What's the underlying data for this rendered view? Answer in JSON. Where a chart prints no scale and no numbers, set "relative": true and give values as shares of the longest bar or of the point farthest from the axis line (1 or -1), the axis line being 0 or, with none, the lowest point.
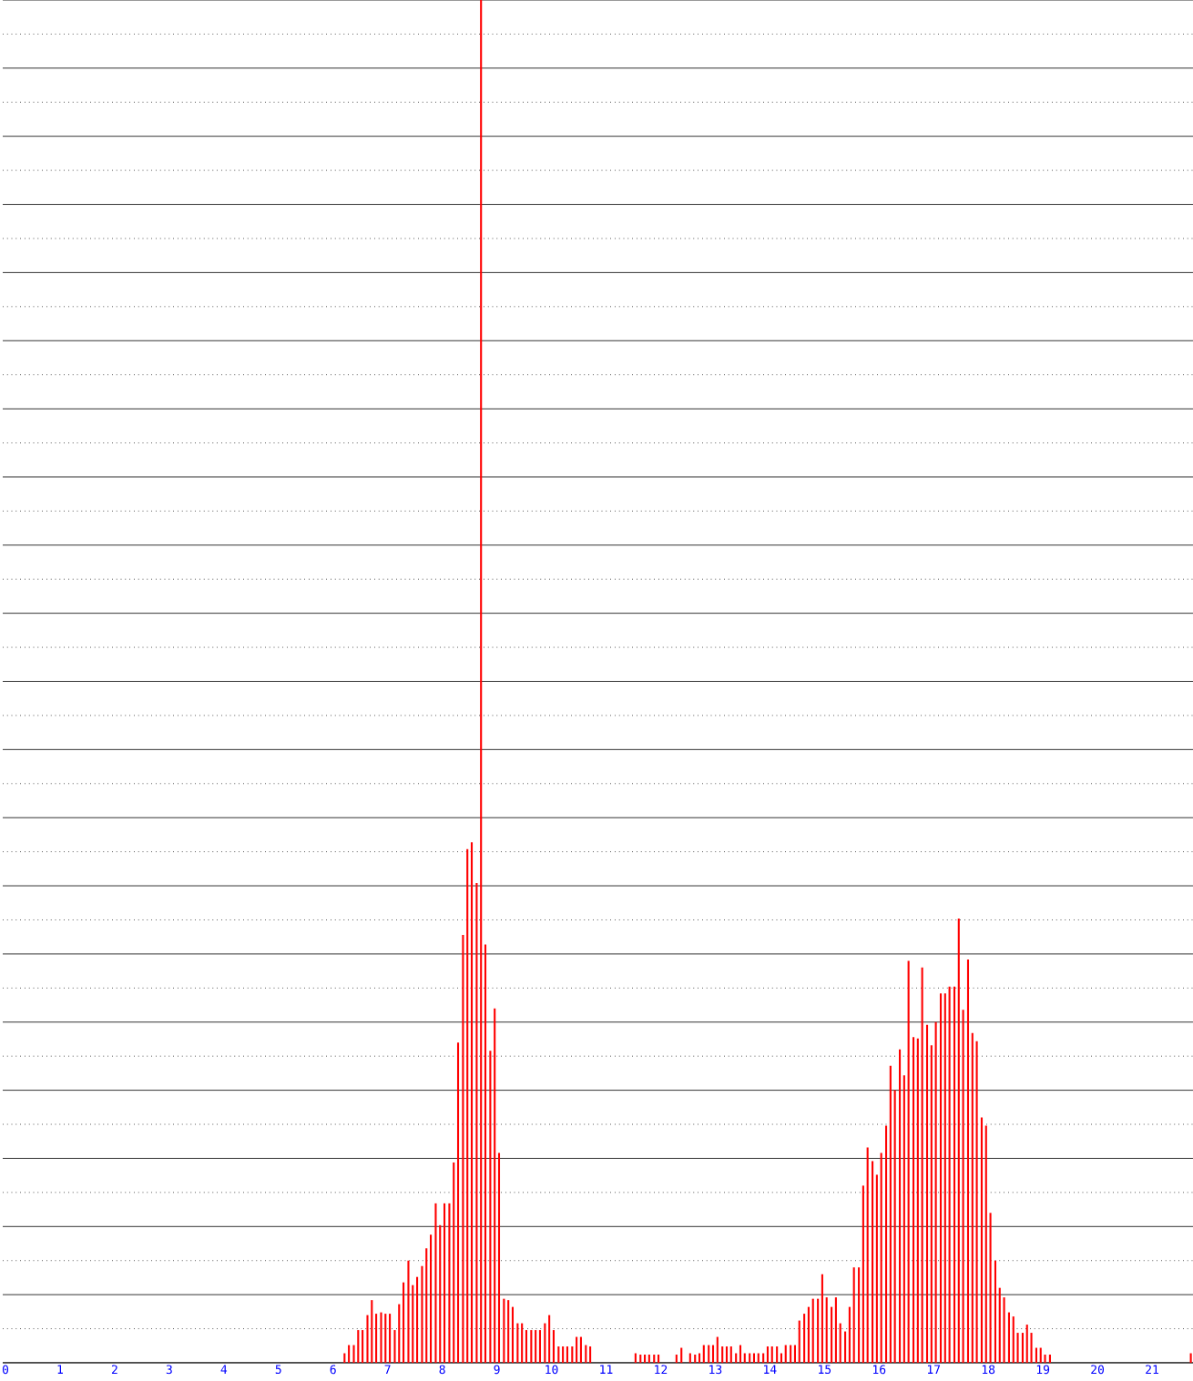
{
  "chart_data": {
    "type": "bar",
    "relative": true,
    "grid": "y",
    "xlim": [
      -0.05,
      21.75
    ],
    "xticks": [
      0,
      1,
      2,
      3,
      4,
      5,
      6,
      7,
      8,
      9,
      10,
      11,
      12,
      13,
      14,
      15,
      16,
      17,
      18,
      19,
      20,
      21
    ],
    "series": [
      {
        "color": "#ff0000",
        "x": [
          6.21,
          6.29,
          6.38,
          6.46,
          6.54,
          6.63,
          6.71,
          6.79,
          6.88,
          6.96,
          7.04,
          7.13,
          7.21,
          7.29,
          7.38,
          7.46,
          7.54,
          7.63,
          7.71,
          7.79,
          7.88,
          7.96,
          8.04,
          8.13,
          8.21,
          8.29,
          8.38,
          8.46,
          8.54,
          8.63,
          8.71,
          8.79,
          8.88,
          8.96,
          9.04,
          9.13,
          9.21,
          9.29,
          9.38,
          9.46,
          9.54,
          9.63,
          9.71,
          9.79,
          9.88,
          9.96,
          10.04,
          10.13,
          10.21,
          10.29,
          10.38,
          10.46,
          10.54,
          10.63,
          10.71,
          11.54,
          11.63,
          11.71,
          11.79,
          11.88,
          11.96,
          12.29,
          12.38,
          12.54,
          12.63,
          12.71,
          12.79,
          12.88,
          12.96,
          13.04,
          13.13,
          13.21,
          13.29,
          13.38,
          13.46,
          13.54,
          13.63,
          13.71,
          13.79,
          13.88,
          13.96,
          14.04,
          14.13,
          14.21,
          14.29,
          14.38,
          14.46,
          14.54,
          14.63,
          14.71,
          14.79,
          14.88,
          14.96,
          15.04,
          15.13,
          15.21,
          15.29,
          15.38,
          15.46,
          15.54,
          15.63,
          15.71,
          15.79,
          15.88,
          15.96,
          16.04,
          16.13,
          16.21,
          16.29,
          16.38,
          16.46,
          16.54,
          16.63,
          16.71,
          16.79,
          16.88,
          16.96,
          17.04,
          17.13,
          17.21,
          17.29,
          17.38,
          17.46,
          17.54,
          17.63,
          17.71,
          17.79,
          17.88,
          17.96,
          18.04,
          18.13,
          18.21,
          18.29,
          18.38,
          18.46,
          18.54,
          18.63,
          18.71,
          18.79,
          18.88,
          18.96,
          19.04,
          19.13,
          21.71
        ],
        "values": [
          0.007,
          0.013,
          0.013,
          0.024,
          0.024,
          0.035,
          0.046,
          0.036,
          0.037,
          0.036,
          0.036,
          0.024,
          0.043,
          0.059,
          0.075,
          0.057,
          0.063,
          0.071,
          0.084,
          0.094,
          0.117,
          0.101,
          0.117,
          0.117,
          0.147,
          0.235,
          0.314,
          0.377,
          0.382,
          0.352,
          1,
          0.307,
          0.229,
          0.26,
          0.154,
          0.047,
          0.046,
          0.041,
          0.029,
          0.029,
          0.024,
          0.024,
          0.024,
          0.024,
          0.029,
          0.035,
          0.024,
          0.012,
          0.012,
          0.012,
          0.012,
          0.019,
          0.019,
          0.013,
          0.012,
          0.007,
          0.006,
          0.006,
          0.006,
          0.006,
          0.006,
          0.006,
          0.011,
          0.007,
          0.006,
          0.007,
          0.013,
          0.013,
          0.013,
          0.019,
          0.012,
          0.012,
          0.012,
          0.007,
          0.013,
          0.007,
          0.007,
          0.007,
          0.007,
          0.007,
          0.012,
          0.012,
          0.012,
          0.007,
          0.013,
          0.013,
          0.013,
          0.031,
          0.036,
          0.041,
          0.047,
          0.047,
          0.065,
          0.048,
          0.041,
          0.048,
          0.029,
          0.023,
          0.041,
          0.07,
          0.07,
          0.13,
          0.158,
          0.148,
          0.138,
          0.154,
          0.174,
          0.218,
          0.2,
          0.23,
          0.211,
          0.295,
          0.239,
          0.238,
          0.29,
          0.248,
          0.233,
          0.25,
          0.271,
          0.271,
          0.276,
          0.276,
          0.326,
          0.259,
          0.296,
          0.242,
          0.236,
          0.18,
          0.174,
          0.11,
          0.075,
          0.055,
          0.048,
          0.037,
          0.034,
          0.022,
          0.022,
          0.028,
          0.022,
          0.011,
          0.011,
          0.006,
          0.006,
          0.007
        ]
      }
    ]
  }
}
